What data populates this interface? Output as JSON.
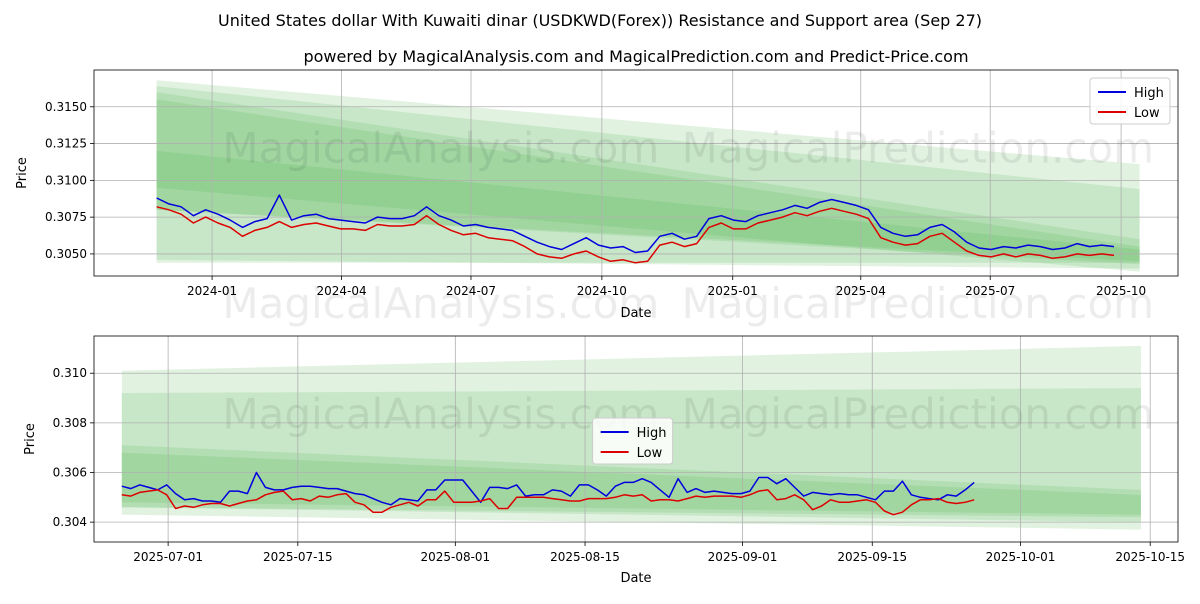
{
  "title": "United States dollar With Kuwaiti dinar (USDKWD(Forex)) Resistance and Support area (Sep 27)",
  "subtitle": "powered by MagicalAnalysis.com and MagicalPrediction.com and Predict-Price.com",
  "watermarks": [
    "MagicalAnalysis.com",
    "MagicalPrediction.com"
  ],
  "colors": {
    "high": "#0000dd",
    "low": "#dd0000",
    "band": "#4caf50",
    "grid": "#b0b0b0"
  },
  "chart_data": [
    {
      "type": "line",
      "xlabel": "Date",
      "ylabel": "Price",
      "x_ticks": [
        "2024-01",
        "2024-04",
        "2024-07",
        "2024-10",
        "2025-01",
        "2025-04",
        "2025-07",
        "2025-10"
      ],
      "y_ticks": [
        "0.3050",
        "0.3075",
        "0.3100",
        "0.3125",
        "0.3150"
      ],
      "ylim": [
        0.3035,
        0.3175
      ],
      "xlim": [
        "2023-10-10",
        "2025-11-10"
      ],
      "grid": true,
      "legend_position": "top-right",
      "data_start": "2023-11-23",
      "data_end": "2025-09-26",
      "series": [
        {
          "name": "High",
          "values": [
            0.3088,
            0.3084,
            0.3082,
            0.3076,
            0.308,
            0.3077,
            0.3073,
            0.3068,
            0.3072,
            0.3074,
            0.309,
            0.3073,
            0.3076,
            0.3077,
            0.3074,
            0.3073,
            0.3072,
            0.3071,
            0.3075,
            0.3074,
            0.3074,
            0.3076,
            0.3082,
            0.3076,
            0.3073,
            0.3069,
            0.307,
            0.3068,
            0.3067,
            0.3066,
            0.3062,
            0.3058,
            0.3055,
            0.3053,
            0.3057,
            0.3061,
            0.3056,
            0.3054,
            0.3055,
            0.3051,
            0.3052,
            0.3062,
            0.3064,
            0.306,
            0.3062,
            0.3074,
            0.3076,
            0.3073,
            0.3072,
            0.3076,
            0.3078,
            0.308,
            0.3083,
            0.3081,
            0.3085,
            0.3087,
            0.3085,
            0.3083,
            0.308,
            0.3068,
            0.3064,
            0.3062,
            0.3063,
            0.3068,
            0.307,
            0.3065,
            0.3058,
            0.3054,
            0.3053,
            0.3055,
            0.3054,
            0.3056,
            0.3055,
            0.3053,
            0.3054,
            0.3057,
            0.3055,
            0.3056,
            0.3055
          ]
        },
        {
          "name": "Low",
          "values": [
            0.3082,
            0.308,
            0.3077,
            0.3071,
            0.3075,
            0.3071,
            0.3068,
            0.3062,
            0.3066,
            0.3068,
            0.3072,
            0.3068,
            0.307,
            0.3071,
            0.3069,
            0.3067,
            0.3067,
            0.3066,
            0.307,
            0.3069,
            0.3069,
            0.307,
            0.3076,
            0.307,
            0.3066,
            0.3063,
            0.3064,
            0.3061,
            0.306,
            0.3059,
            0.3055,
            0.305,
            0.3048,
            0.3047,
            0.305,
            0.3052,
            0.3048,
            0.3045,
            0.3046,
            0.3044,
            0.3045,
            0.3056,
            0.3058,
            0.3055,
            0.3057,
            0.3068,
            0.3071,
            0.3067,
            0.3067,
            0.3071,
            0.3073,
            0.3075,
            0.3078,
            0.3076,
            0.3079,
            0.3081,
            0.3079,
            0.3077,
            0.3074,
            0.3061,
            0.3058,
            0.3056,
            0.3057,
            0.3062,
            0.3064,
            0.3058,
            0.3052,
            0.3049,
            0.3048,
            0.305,
            0.3048,
            0.305,
            0.3049,
            0.3047,
            0.3048,
            0.305,
            0.3049,
            0.305,
            0.3049
          ]
        }
      ],
      "bands": [
        {
          "x": [
            "2023-11-23",
            "2025-10-14"
          ],
          "upper": [
            0.3168,
            0.3111
          ],
          "lower": [
            0.3044,
            0.3044
          ]
        },
        {
          "x": [
            "2023-11-23",
            "2025-10-14"
          ],
          "upper": [
            0.3164,
            0.3094
          ],
          "lower": [
            0.3046,
            0.304
          ]
        },
        {
          "x": [
            "2023-11-23",
            "2025-10-14"
          ],
          "upper": [
            0.316,
            0.306
          ],
          "lower": [
            0.308,
            0.3045
          ]
        },
        {
          "x": [
            "2023-11-23",
            "2025-10-14"
          ],
          "upper": [
            0.3155,
            0.3055
          ],
          "lower": [
            0.3095,
            0.3038
          ]
        },
        {
          "x": [
            "2023-11-23",
            "2025-10-14"
          ],
          "upper": [
            0.312,
            0.3053
          ],
          "lower": [
            0.308,
            0.3043
          ]
        }
      ]
    },
    {
      "type": "line",
      "xlabel": "Date",
      "ylabel": "Price",
      "x_ticks": [
        "2025-07-01",
        "2025-07-15",
        "2025-08-01",
        "2025-08-15",
        "2025-09-01",
        "2025-09-15",
        "2025-10-01",
        "2025-10-15"
      ],
      "y_ticks": [
        "0.304",
        "0.306",
        "0.308",
        "0.310"
      ],
      "ylim": [
        0.3032,
        0.3115
      ],
      "xlim": [
        "2025-06-23",
        "2025-10-18"
      ],
      "grid": true,
      "legend_position": "center",
      "data_start": "2025-06-26",
      "data_end": "2025-09-26",
      "series": [
        {
          "name": "High",
          "values": [
            0.30545,
            0.30535,
            0.3055,
            0.3054,
            0.3053,
            0.3055,
            0.30515,
            0.3049,
            0.30495,
            0.30485,
            0.30485,
            0.3048,
            0.30525,
            0.30525,
            0.30515,
            0.306,
            0.3054,
            0.3053,
            0.3053,
            0.3054,
            0.30545,
            0.30545,
            0.3054,
            0.30535,
            0.30535,
            0.30525,
            0.30515,
            0.3051,
            0.30495,
            0.3048,
            0.3047,
            0.30495,
            0.3049,
            0.30485,
            0.3053,
            0.3053,
            0.3057,
            0.3057,
            0.3057,
            0.30525,
            0.3048,
            0.3054,
            0.3054,
            0.30535,
            0.3055,
            0.30505,
            0.3051,
            0.3051,
            0.3053,
            0.30525,
            0.30505,
            0.3055,
            0.3055,
            0.3053,
            0.30505,
            0.30545,
            0.3056,
            0.3056,
            0.30575,
            0.3056,
            0.3053,
            0.305,
            0.30575,
            0.3052,
            0.30535,
            0.3052,
            0.30525,
            0.3052,
            0.30515,
            0.30515,
            0.30525,
            0.3058,
            0.3058,
            0.30555,
            0.30575,
            0.3054,
            0.30505,
            0.3052,
            0.30515,
            0.3051,
            0.30515,
            0.3051,
            0.3051,
            0.305,
            0.3049,
            0.30525,
            0.30525,
            0.30565,
            0.3051,
            0.305,
            0.30495,
            0.3049,
            0.3051,
            0.30505,
            0.3053,
            0.3056
          ]
        },
        {
          "name": "Low",
          "values": [
            0.3051,
            0.30505,
            0.3052,
            0.30525,
            0.3053,
            0.3051,
            0.30455,
            0.30465,
            0.3046,
            0.3047,
            0.30475,
            0.30475,
            0.30465,
            0.30475,
            0.30485,
            0.3049,
            0.3051,
            0.3052,
            0.30525,
            0.3049,
            0.30495,
            0.30485,
            0.30505,
            0.305,
            0.3051,
            0.30515,
            0.3048,
            0.3047,
            0.3044,
            0.3044,
            0.3046,
            0.3047,
            0.3048,
            0.30465,
            0.3049,
            0.3049,
            0.30525,
            0.3048,
            0.3048,
            0.3048,
            0.30485,
            0.30495,
            0.30455,
            0.30455,
            0.305,
            0.305,
            0.305,
            0.305,
            0.30495,
            0.3049,
            0.30485,
            0.30485,
            0.30495,
            0.30495,
            0.30495,
            0.305,
            0.3051,
            0.30505,
            0.3051,
            0.30485,
            0.3049,
            0.3049,
            0.30485,
            0.30495,
            0.30505,
            0.305,
            0.30505,
            0.30505,
            0.30505,
            0.305,
            0.3051,
            0.30525,
            0.3053,
            0.3049,
            0.30495,
            0.3051,
            0.3049,
            0.3045,
            0.30465,
            0.3049,
            0.3048,
            0.3048,
            0.30485,
            0.3049,
            0.3048,
            0.30445,
            0.3043,
            0.3044,
            0.3047,
            0.3049,
            0.3049,
            0.30495,
            0.3048,
            0.30475,
            0.3048,
            0.3049
          ]
        }
      ],
      "bands": [
        {
          "x": [
            "2025-06-26",
            "2025-10-14"
          ],
          "upper": [
            0.3101,
            0.3111
          ],
          "lower": [
            0.3043,
            0.3037
          ]
        },
        {
          "x": [
            "2025-06-26",
            "2025-10-14"
          ],
          "upper": [
            0.3092,
            0.3094
          ],
          "lower": [
            0.3046,
            0.304
          ]
        },
        {
          "x": [
            "2025-06-26",
            "2025-10-14"
          ],
          "upper": [
            0.3071,
            0.3053
          ],
          "lower": [
            0.3046,
            0.3042
          ]
        },
        {
          "x": [
            "2025-06-26",
            "2025-10-14"
          ],
          "upper": [
            0.3068,
            0.3051
          ],
          "lower": [
            0.3048,
            0.3043
          ]
        }
      ]
    }
  ]
}
